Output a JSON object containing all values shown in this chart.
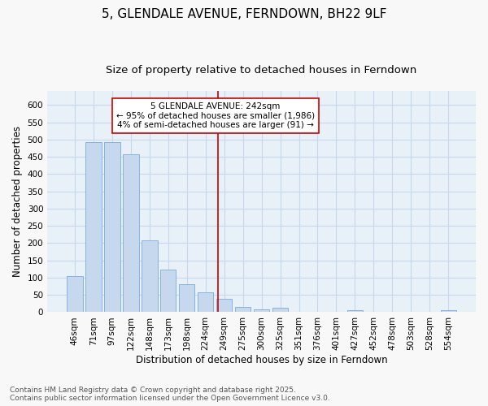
{
  "title": "5, GLENDALE AVENUE, FERNDOWN, BH22 9LF",
  "subtitle": "Size of property relative to detached houses in Ferndown",
  "xlabel": "Distribution of detached houses by size in Ferndown",
  "ylabel": "Number of detached properties",
  "categories": [
    "46sqm",
    "71sqm",
    "97sqm",
    "122sqm",
    "148sqm",
    "173sqm",
    "198sqm",
    "224sqm",
    "249sqm",
    "275sqm",
    "300sqm",
    "325sqm",
    "351sqm",
    "376sqm",
    "401sqm",
    "427sqm",
    "452sqm",
    "478sqm",
    "503sqm",
    "528sqm",
    "554sqm"
  ],
  "values": [
    105,
    492,
    492,
    458,
    208,
    123,
    82,
    57,
    38,
    16,
    8,
    12,
    0,
    0,
    0,
    5,
    0,
    0,
    0,
    0,
    5
  ],
  "bar_color": "#c5d8ee",
  "bar_edge_color": "#7aacda",
  "bar_width": 0.85,
  "ylim": [
    0,
    640
  ],
  "yticks": [
    0,
    50,
    100,
    150,
    200,
    250,
    300,
    350,
    400,
    450,
    500,
    550,
    600
  ],
  "vline_x_index": 7.68,
  "vline_color": "#cc0000",
  "annotation_title": "5 GLENDALE AVENUE: 242sqm",
  "annotation_line1": "← 95% of detached houses are smaller (1,986)",
  "annotation_line2": "4% of semi-detached houses are larger (91) →",
  "annotation_box_facecolor": "#ffffff",
  "annotation_box_edgecolor": "#cc0000",
  "grid_color": "#c8d8ec",
  "axes_facecolor": "#e8f0f8",
  "fig_facecolor": "#f8f8f8",
  "footer_line1": "Contains HM Land Registry data © Crown copyright and database right 2025.",
  "footer_line2": "Contains public sector information licensed under the Open Government Licence v3.0.",
  "title_fontsize": 11,
  "subtitle_fontsize": 9.5,
  "annotation_fontsize": 7.5,
  "tick_fontsize": 7.5,
  "ylabel_fontsize": 8.5,
  "xlabel_fontsize": 8.5,
  "footer_fontsize": 6.5
}
